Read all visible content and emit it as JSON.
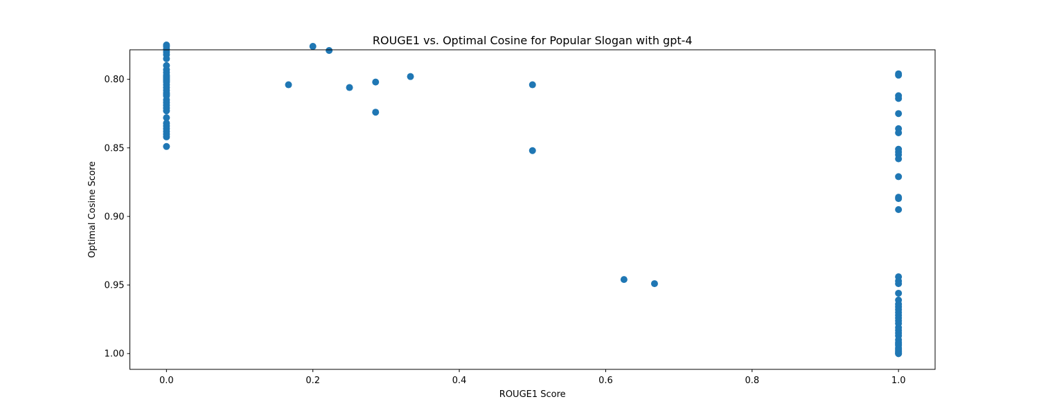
{
  "chart_data": {
    "type": "scatter",
    "title": "ROUGE1 vs. Optimal Cosine for Popular Slogan with gpt-4",
    "xlabel": "ROUGE1 Score",
    "ylabel": "Optimal Cosine Score",
    "xlim": [
      -0.05,
      1.05
    ],
    "ylim": [
      0.7785,
      1.0115
    ],
    "y_inverted": true,
    "grid": false,
    "legend": "none",
    "xticks": [
      0.0,
      0.2,
      0.4,
      0.6,
      0.8,
      1.0
    ],
    "xtick_labels": [
      "0.0",
      "0.2",
      "0.4",
      "0.6",
      "0.8",
      "1.0"
    ],
    "yticks": [
      0.8,
      0.85,
      0.9,
      0.95,
      1.0
    ],
    "ytick_labels": [
      "0.80",
      "0.85",
      "0.90",
      "0.95",
      "1.00"
    ],
    "marker_color": "#1f77b4",
    "series": [
      {
        "name": "",
        "x": [
          0,
          0,
          0,
          0,
          0,
          0,
          0,
          0,
          0,
          0,
          0,
          0,
          0,
          0,
          0,
          0,
          0,
          0,
          0,
          0,
          0,
          0,
          0,
          0,
          0,
          0,
          0,
          0,
          0,
          0,
          0,
          0,
          0,
          0,
          0.1667,
          0.2,
          0.2222,
          0.25,
          0.2857,
          0.2857,
          0.3333,
          0.5,
          0.5,
          0.625,
          0.6667,
          1,
          1,
          1,
          1,
          1,
          1,
          1,
          1,
          1,
          1,
          1,
          1,
          1,
          1,
          1,
          1,
          1,
          1,
          1,
          1,
          1,
          1,
          1,
          1,
          1,
          1,
          1,
          1,
          1,
          1,
          1,
          1,
          1,
          1,
          1,
          1,
          1,
          1,
          1,
          1,
          1,
          1
        ],
        "y": [
          0.775,
          0.776,
          0.778,
          0.78,
          0.782,
          0.785,
          0.79,
          0.793,
          0.795,
          0.797,
          0.798,
          0.799,
          0.8,
          0.804,
          0.808,
          0.81,
          0.811,
          0.815,
          0.817,
          0.819,
          0.821,
          0.823,
          0.828,
          0.832,
          0.834,
          0.836,
          0.838,
          0.84,
          0.842,
          0.849,
          0.812,
          0.806,
          0.802,
          0.801,
          0.804,
          0.776,
          0.779,
          0.806,
          0.802,
          0.824,
          0.798,
          0.804,
          0.852,
          0.946,
          0.949,
          0.796,
          0.797,
          0.812,
          0.814,
          0.825,
          0.836,
          0.839,
          0.851,
          0.853,
          0.855,
          0.858,
          0.871,
          0.886,
          0.887,
          0.895,
          0.944,
          0.947,
          0.949,
          0.956,
          0.961,
          0.964,
          0.966,
          0.968,
          0.97,
          0.972,
          0.974,
          0.976,
          0.978,
          0.981,
          0.983,
          0.985,
          0.987,
          0.99,
          0.992,
          0.994,
          0.996,
          0.998,
          0.999,
          1.0,
          1.0,
          0.997,
          0.993
        ]
      }
    ]
  }
}
